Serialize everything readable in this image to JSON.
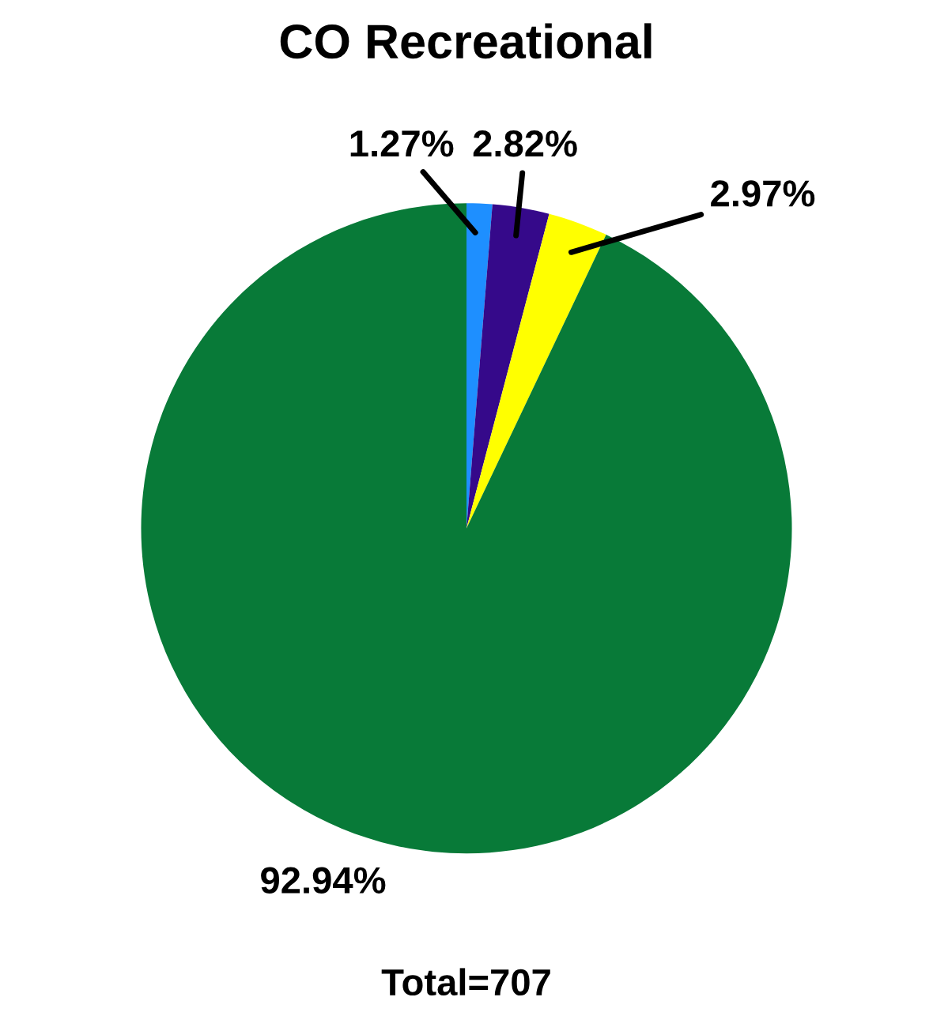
{
  "chart_data": {
    "type": "pie",
    "title": "CO Recreational",
    "categories": [
      null,
      null,
      null,
      null
    ],
    "values": [
      1.27,
      2.82,
      2.97,
      92.94
    ],
    "colors": [
      "#1e8fff",
      "#35098a",
      "#ffff00",
      "#087a38"
    ],
    "value_labels": [
      "1.27%",
      "2.82%",
      "2.97%",
      "92.94%"
    ],
    "annotations": [
      "Total=707"
    ]
  }
}
